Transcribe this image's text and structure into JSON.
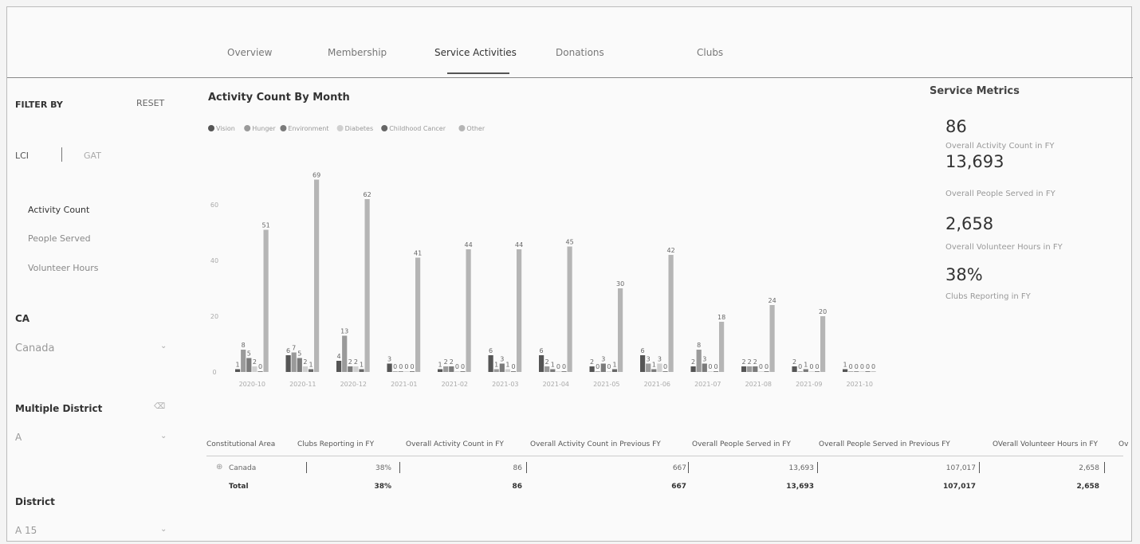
{
  "tabs": [
    "Overview",
    "Membership",
    "Service Activities",
    "Donations",
    "Clubs"
  ],
  "sidebar": {
    "filter_by": "FILTER BY",
    "reset": "RESET",
    "toggle": [
      "LCI",
      "GAT"
    ],
    "measures": [
      "Activity Count",
      "People Served",
      "Volunteer Hours"
    ],
    "ca_label": "CA",
    "ca_value": "Canada",
    "md_label": "Multiple District",
    "md_value": "A",
    "district_label": "District",
    "district_value": "A 15"
  },
  "metrics": {
    "title": "Service Metrics",
    "items": [
      {
        "value": "86",
        "label": "Overall Activity Count in FY"
      },
      {
        "value": "13,693",
        "label": "Overall People Served in FY"
      },
      {
        "value": "2,658",
        "label": "Overall Volunteer Hours in FY"
      },
      {
        "value": "38%",
        "label": "Clubs Reporting in FY"
      }
    ]
  },
  "chart_data": {
    "type": "bar",
    "title": "Activity Count By Month",
    "categories": [
      "2020-10",
      "2020-11",
      "2020-12",
      "2021-01",
      "2021-02",
      "2021-03",
      "2021-04",
      "2021-05",
      "2021-06",
      "2021-07",
      "2021-08",
      "2021-09",
      "2021-10"
    ],
    "series": [
      {
        "name": "Vision",
        "color": "#555555",
        "values": [
          1,
          6,
          4,
          3,
          1,
          6,
          6,
          2,
          6,
          2,
          2,
          2,
          1
        ]
      },
      {
        "name": "Hunger",
        "color": "#9a9a9a",
        "values": [
          8,
          7,
          13,
          0,
          2,
          1,
          2,
          0,
          3,
          8,
          2,
          0,
          0
        ]
      },
      {
        "name": "Environment",
        "color": "#7a7a7a",
        "values": [
          5,
          5,
          2,
          0,
          2,
          3,
          1,
          3,
          1,
          3,
          2,
          1,
          0
        ]
      },
      {
        "name": "Diabetes",
        "color": "#d0d0d0",
        "values": [
          2,
          2,
          2,
          0,
          0,
          1,
          0,
          0,
          3,
          0,
          0,
          0,
          0
        ]
      },
      {
        "name": "Childhood Cancer",
        "color": "#666666",
        "values": [
          0,
          1,
          1,
          0,
          0,
          0,
          0,
          1,
          0,
          0,
          0,
          0,
          0
        ]
      },
      {
        "name": "Other",
        "color": "#b5b5b5",
        "values": [
          51,
          69,
          62,
          41,
          44,
          44,
          45,
          30,
          42,
          18,
          24,
          20,
          0
        ]
      }
    ],
    "ylim": [
      0,
      72
    ],
    "yticks": [
      0,
      20,
      40,
      60
    ]
  },
  "table": {
    "headers": [
      "Constitutional Area",
      "Clubs Reporting in FY",
      "Overall Activity Count in FY",
      "Overall Activity Count in Previous FY",
      "Overall People Served in FY",
      "Overall People Served in Previous FY",
      "OVerall Volunteer Hours in FY",
      "Ov"
    ],
    "rows": [
      {
        "name": "Canada",
        "clubs": "38%",
        "act": "86",
        "act_prev": "667",
        "people": "13,693",
        "people_prev": "107,017",
        "hours": "2,658"
      }
    ],
    "total": {
      "name": "Total",
      "clubs": "38%",
      "act": "86",
      "act_prev": "667",
      "people": "13,693",
      "people_prev": "107,017",
      "hours": "2,658"
    }
  }
}
